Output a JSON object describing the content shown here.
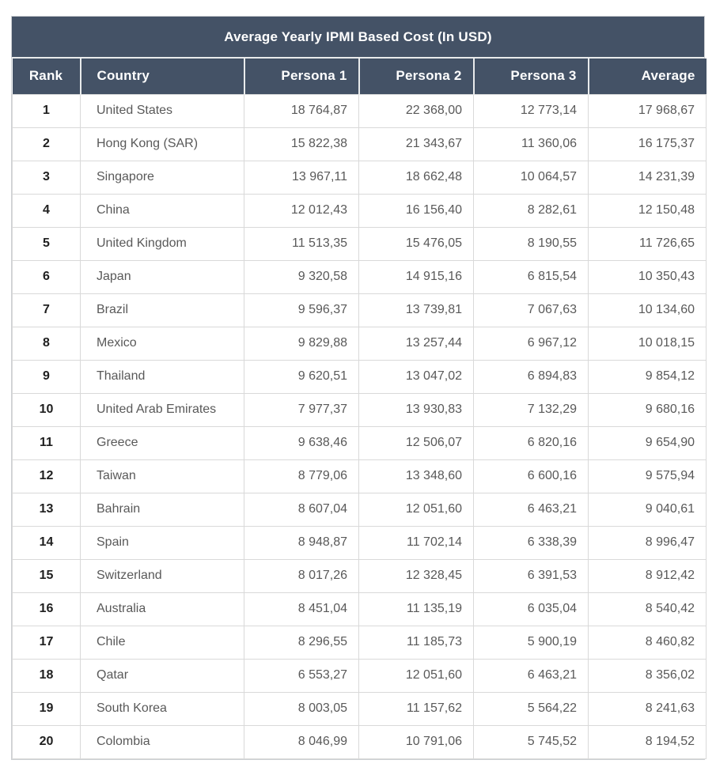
{
  "chart_data": {
    "type": "table",
    "title": "Average Yearly IPMI Based Cost (In USD)",
    "columns": [
      "Rank",
      "Country",
      "Persona 1",
      "Persona 2",
      "Persona 3",
      "Average"
    ],
    "rows": [
      [
        "1",
        "United States",
        "18 764,87",
        "22 368,00",
        "12 773,14",
        "17 968,67"
      ],
      [
        "2",
        "Hong Kong (SAR)",
        "15 822,38",
        "21 343,67",
        "11 360,06",
        "16 175,37"
      ],
      [
        "3",
        "Singapore",
        "13 967,11",
        "18 662,48",
        "10 064,57",
        "14 231,39"
      ],
      [
        "4",
        "China",
        "12 012,43",
        "16 156,40",
        "8 282,61",
        "12 150,48"
      ],
      [
        "5",
        "United Kingdom",
        "11 513,35",
        "15 476,05",
        "8 190,55",
        "11 726,65"
      ],
      [
        "6",
        "Japan",
        "9 320,58",
        "14 915,16",
        "6 815,54",
        "10 350,43"
      ],
      [
        "7",
        "Brazil",
        "9 596,37",
        "13 739,81",
        "7 067,63",
        "10 134,60"
      ],
      [
        "8",
        "Mexico",
        "9 829,88",
        "13 257,44",
        "6 967,12",
        "10 018,15"
      ],
      [
        "9",
        "Thailand",
        "9 620,51",
        "13 047,02",
        "6 894,83",
        "9 854,12"
      ],
      [
        "10",
        "United Arab Emirates",
        "7 977,37",
        "13 930,83",
        "7 132,29",
        "9 680,16"
      ],
      [
        "11",
        "Greece",
        "9 638,46",
        "12 506,07",
        "6 820,16",
        "9 654,90"
      ],
      [
        "12",
        "Taiwan",
        "8 779,06",
        "13 348,60",
        "6 600,16",
        "9 575,94"
      ],
      [
        "13",
        "Bahrain",
        "8 607,04",
        "12 051,60",
        "6 463,21",
        "9 040,61"
      ],
      [
        "14",
        "Spain",
        "8 948,87",
        "11 702,14",
        "6 338,39",
        "8 996,47"
      ],
      [
        "15",
        "Switzerland",
        "8 017,26",
        "12 328,45",
        "6 391,53",
        "8 912,42"
      ],
      [
        "16",
        "Australia",
        "8 451,04",
        "11 135,19",
        "6 035,04",
        "8 540,42"
      ],
      [
        "17",
        "Chile",
        "8 296,55",
        "11 185,73",
        "5 900,19",
        "8 460,82"
      ],
      [
        "18",
        "Qatar",
        "6 553,27",
        "12 051,60",
        "6 463,21",
        "8 356,02"
      ],
      [
        "19",
        "South Korea",
        "8 003,05",
        "11 157,62",
        "5 564,22",
        "8 241,63"
      ],
      [
        "20",
        "Colombia",
        "8 046,99",
        "10 791,06",
        "5 745,52",
        "8 194,52"
      ]
    ]
  },
  "colors": {
    "header_bg": "#445266",
    "header_separator": "#e9ebec",
    "grid_border": "#d9d9d9",
    "outer_border": "#cdd0d3",
    "title_text": "#ffffff",
    "rank_text": "#1f1f1f",
    "body_text": "#595959",
    "page_bg": "#ffffff"
  }
}
